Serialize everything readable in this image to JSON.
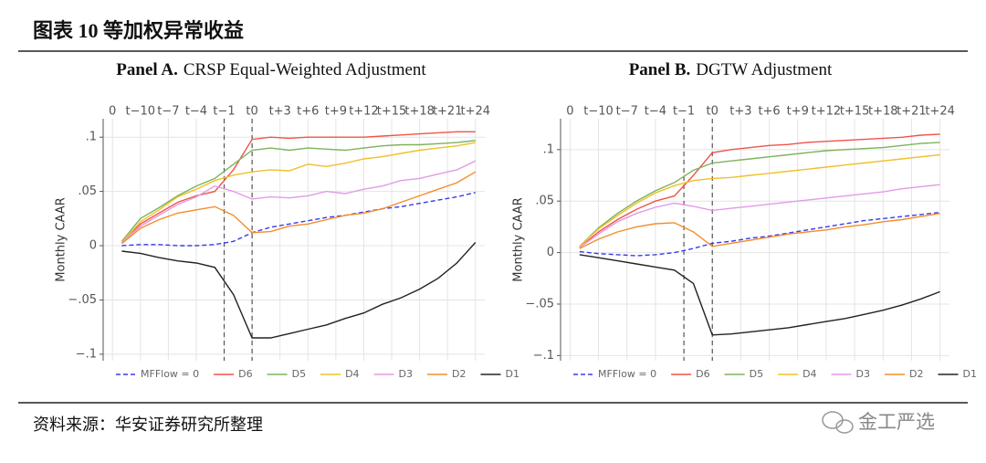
{
  "header": {
    "title": "图表 10 等加权异常收益"
  },
  "footer": {
    "source": "资料来源：华安证券研究所整理",
    "watermark": "金工严选"
  },
  "chart_data": [
    {
      "type": "line",
      "panel": "Panel A.",
      "title": "CRSP Equal-Weighted Adjustment",
      "y_label": "Monthly CAAR",
      "x": [
        1,
        3,
        5,
        7,
        9,
        11,
        13,
        15,
        17,
        19,
        21,
        23,
        25,
        27,
        29,
        31,
        33,
        35,
        37,
        39
      ],
      "xlim": [
        -1,
        40
      ],
      "ylim": [
        -0.106,
        0.117
      ],
      "xticks": [
        0,
        {
          "value": 3,
          "label": "t−10"
        },
        {
          "value": 6,
          "label": "t−7"
        },
        {
          "value": 9,
          "label": "t−4"
        },
        {
          "value": 12,
          "label": "t−1"
        },
        {
          "value": 15,
          "label": "t0"
        },
        {
          "value": 18,
          "label": "t+3"
        },
        {
          "value": 21,
          "label": "t+6"
        },
        {
          "value": 24,
          "label": "t+9"
        },
        {
          "value": 27,
          "label": "t+12"
        },
        {
          "value": 30,
          "label": "t+15"
        },
        {
          "value": 33,
          "label": "t+18"
        },
        {
          "value": 36,
          "label": "t+21"
        },
        {
          "value": 39,
          "label": "t+24"
        }
      ],
      "yticks": [
        {
          "value": -0.1,
          "label": "−.1"
        },
        {
          "value": -0.05,
          "label": "−.05"
        },
        0,
        {
          "value": 0.05,
          "label": ".05"
        },
        {
          "value": 0.1,
          "label": ".1"
        }
      ],
      "vlines": [
        12,
        15
      ],
      "grid": true,
      "legend": "bottom",
      "series": [
        {
          "name": "MFFlow = 0",
          "color": "#3a3af0",
          "dashed": true,
          "values": [
            0.0,
            0.001,
            0.001,
            0.0,
            0.0,
            0.001,
            0.004,
            0.012,
            0.017,
            0.02,
            0.023,
            0.026,
            0.028,
            0.031,
            0.034,
            0.036,
            0.039,
            0.042,
            0.045,
            0.049
          ]
        },
        {
          "name": "D6",
          "color": "#f0544a",
          "values": [
            0.003,
            0.02,
            0.03,
            0.04,
            0.046,
            0.05,
            0.07,
            0.098,
            0.1,
            0.099,
            0.1,
            0.1,
            0.1,
            0.1,
            0.101,
            0.102,
            0.103,
            0.104,
            0.105,
            0.105
          ]
        },
        {
          "name": "D5",
          "color": "#7db35c",
          "values": [
            0.004,
            0.025,
            0.035,
            0.046,
            0.055,
            0.062,
            0.075,
            0.088,
            0.09,
            0.088,
            0.09,
            0.089,
            0.088,
            0.09,
            0.092,
            0.093,
            0.093,
            0.094,
            0.095,
            0.097
          ]
        },
        {
          "name": "D4",
          "color": "#f0c02a",
          "values": [
            0.003,
            0.022,
            0.033,
            0.045,
            0.052,
            0.06,
            0.065,
            0.068,
            0.07,
            0.069,
            0.075,
            0.073,
            0.076,
            0.08,
            0.082,
            0.085,
            0.088,
            0.09,
            0.092,
            0.095
          ]
        },
        {
          "name": "D3",
          "color": "#e39be6",
          "values": [
            0.003,
            0.018,
            0.028,
            0.038,
            0.045,
            0.055,
            0.05,
            0.043,
            0.045,
            0.044,
            0.046,
            0.05,
            0.048,
            0.052,
            0.055,
            0.06,
            0.062,
            0.066,
            0.07,
            0.078
          ]
        },
        {
          "name": "D2",
          "color": "#f28e2b",
          "values": [
            0.002,
            0.016,
            0.024,
            0.03,
            0.033,
            0.036,
            0.028,
            0.012,
            0.013,
            0.018,
            0.02,
            0.024,
            0.028,
            0.03,
            0.034,
            0.04,
            0.046,
            0.052,
            0.058,
            0.068
          ]
        },
        {
          "name": "D1",
          "color": "#222222",
          "values": [
            -0.005,
            -0.007,
            -0.011,
            -0.014,
            -0.016,
            -0.02,
            -0.045,
            -0.085,
            -0.085,
            -0.081,
            -0.077,
            -0.073,
            -0.067,
            -0.062,
            -0.054,
            -0.048,
            -0.04,
            -0.03,
            -0.016,
            0.003
          ]
        }
      ]
    },
    {
      "type": "line",
      "panel": "Panel B.",
      "title": "DGTW Adjustment",
      "y_label": "Monthly CAAR",
      "x": [
        1,
        3,
        5,
        7,
        9,
        11,
        13,
        15,
        17,
        19,
        21,
        23,
        25,
        27,
        29,
        31,
        33,
        35,
        37,
        39
      ],
      "xlim": [
        -1,
        40
      ],
      "ylim": [
        -0.105,
        0.13
      ],
      "xticks": [
        0,
        {
          "value": 3,
          "label": "t−10"
        },
        {
          "value": 6,
          "label": "t−7"
        },
        {
          "value": 9,
          "label": "t−4"
        },
        {
          "value": 12,
          "label": "t−1"
        },
        {
          "value": 15,
          "label": "t0"
        },
        {
          "value": 18,
          "label": "t+3"
        },
        {
          "value": 21,
          "label": "t+6"
        },
        {
          "value": 24,
          "label": "t+9"
        },
        {
          "value": 27,
          "label": "t+12"
        },
        {
          "value": 30,
          "label": "t+15"
        },
        {
          "value": 33,
          "label": "t+18"
        },
        {
          "value": 36,
          "label": "t+21"
        },
        {
          "value": 39,
          "label": "t+24"
        }
      ],
      "yticks": [
        {
          "value": -0.1,
          "label": "−.1"
        },
        {
          "value": -0.05,
          "label": "−.05"
        },
        0,
        {
          "value": 0.05,
          "label": ".05"
        },
        {
          "value": 0.1,
          "label": ".1"
        }
      ],
      "vlines": [
        12,
        15
      ],
      "grid": true,
      "legend": "bottom",
      "series": [
        {
          "name": "MFFlow = 0",
          "color": "#3a3af0",
          "dashed": true,
          "values": [
            0.001,
            -0.001,
            -0.002,
            -0.003,
            -0.002,
            0.0,
            0.004,
            0.009,
            0.011,
            0.014,
            0.016,
            0.019,
            0.022,
            0.025,
            0.028,
            0.031,
            0.033,
            0.035,
            0.037,
            0.039
          ]
        },
        {
          "name": "D6",
          "color": "#f0544a",
          "values": [
            0.005,
            0.02,
            0.032,
            0.042,
            0.05,
            0.055,
            0.075,
            0.097,
            0.1,
            0.102,
            0.104,
            0.105,
            0.107,
            0.108,
            0.109,
            0.11,
            0.111,
            0.112,
            0.114,
            0.115
          ]
        },
        {
          "name": "D5",
          "color": "#7db35c",
          "values": [
            0.006,
            0.024,
            0.038,
            0.05,
            0.06,
            0.068,
            0.08,
            0.087,
            0.089,
            0.091,
            0.093,
            0.095,
            0.097,
            0.099,
            0.1,
            0.101,
            0.102,
            0.104,
            0.106,
            0.107
          ]
        },
        {
          "name": "D4",
          "color": "#f0c02a",
          "values": [
            0.006,
            0.023,
            0.036,
            0.048,
            0.058,
            0.065,
            0.07,
            0.072,
            0.073,
            0.075,
            0.077,
            0.079,
            0.081,
            0.083,
            0.085,
            0.087,
            0.089,
            0.091,
            0.093,
            0.095
          ]
        },
        {
          "name": "D3",
          "color": "#e39be6",
          "values": [
            0.005,
            0.018,
            0.03,
            0.038,
            0.044,
            0.048,
            0.045,
            0.041,
            0.043,
            0.045,
            0.047,
            0.049,
            0.051,
            0.053,
            0.055,
            0.057,
            0.059,
            0.062,
            0.064,
            0.066
          ]
        },
        {
          "name": "D2",
          "color": "#f28e2b",
          "values": [
            0.004,
            0.013,
            0.02,
            0.025,
            0.028,
            0.029,
            0.02,
            0.006,
            0.009,
            0.012,
            0.015,
            0.018,
            0.02,
            0.022,
            0.025,
            0.027,
            0.03,
            0.032,
            0.035,
            0.038
          ]
        },
        {
          "name": "D1",
          "color": "#222222",
          "values": [
            -0.002,
            -0.005,
            -0.008,
            -0.011,
            -0.014,
            -0.017,
            -0.03,
            -0.08,
            -0.079,
            -0.077,
            -0.075,
            -0.073,
            -0.07,
            -0.067,
            -0.064,
            -0.06,
            -0.056,
            -0.051,
            -0.045,
            -0.038
          ]
        }
      ]
    }
  ]
}
